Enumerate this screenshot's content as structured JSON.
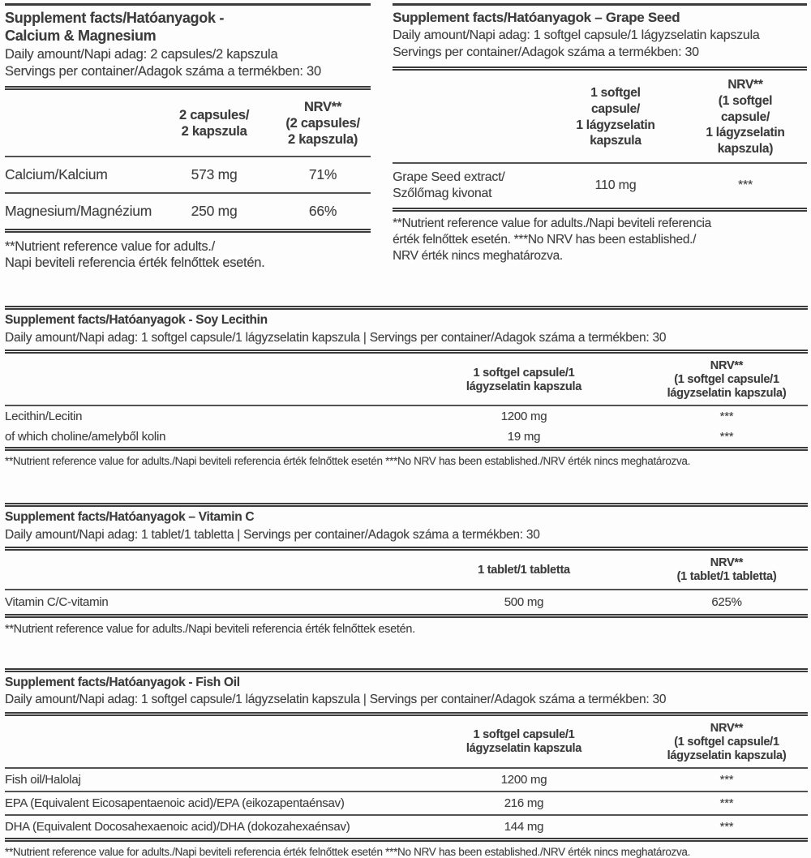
{
  "colors": {
    "text": "#414141",
    "rule": "#3b3b3b",
    "background": "#fdfdfd"
  },
  "tables": [
    {
      "id": "calcium-magnesium",
      "title_lines": [
        "Supplement facts/Hatóanyagok -",
        "Calcium & Magnesium"
      ],
      "meta_lines": [
        "Daily amount/Napi adag: 2 capsules/2 kapszula",
        "Servings per container/Adagok száma a termékben: 30"
      ],
      "amount_header_lines": [
        "2 capsules/",
        "2 kapszula"
      ],
      "nrv_header_lines": [
        "NRV**",
        "(2 capsules/",
        "2 kapszula)"
      ],
      "rows": [
        {
          "label_lines": [
            "Calcium/Kalcium"
          ],
          "amount": "573 mg",
          "nrv": "71%"
        },
        {
          "label_lines": [
            "Magnesium/Magnézium"
          ],
          "amount": "250 mg",
          "nrv": "66%"
        }
      ],
      "footnote_lines": [
        "**Nutrient reference value for adults./",
        "Napi beviteli referencia érték felnőttek esetén."
      ]
    },
    {
      "id": "grape-seed",
      "title_lines": [
        "Supplement facts/Hatóanyagok – Grape Seed"
      ],
      "meta_lines": [
        "Daily amount/Napi adag: 1 softgel capsule/1 lágyzselatin kapszula",
        "Servings per container/Adagok száma a termékben: 30"
      ],
      "amount_header_lines": [
        "1 softgel",
        "capsule/",
        "1 lágyzselatin",
        "kapszula"
      ],
      "nrv_header_lines": [
        "NRV**",
        "(1 softgel",
        "capsule/",
        "1 lágyzselatin",
        "kapszula)"
      ],
      "rows": [
        {
          "label_lines": [
            "Grape Seed extract/",
            "Szőlőmag kivonat"
          ],
          "amount": "110 mg",
          "nrv": "***"
        }
      ],
      "footnote_lines": [
        "**Nutrient reference value for adults./Napi beviteli referencia",
        "érték felnőttek esetén. ***No NRV has been established./",
        "NRV érték nincs meghatározva."
      ]
    },
    {
      "id": "soy-lecithin",
      "title_lines": [
        "Supplement facts/Hatóanyagok - Soy Lecithin"
      ],
      "meta_lines": [
        "Daily amount/Napi adag: 1 softgel capsule/1 lágyzselatin kapszula | Servings per container/Adagok száma a termékben: 30"
      ],
      "amount_header_lines": [
        "1 softgel capsule/1",
        "lágyzselatin kapszula"
      ],
      "nrv_header_lines": [
        "NRV**",
        "(1 softgel capsule/1",
        "lágyzselatin kapszula)"
      ],
      "rows": [
        {
          "label_lines": [
            "Lecithin/Lecitin"
          ],
          "amount": "1200 mg",
          "nrv": "***"
        },
        {
          "label_lines": [
            "of which choline/amelyből kolin"
          ],
          "amount": "19 mg",
          "nrv": "***"
        }
      ],
      "footnote_lines": [
        "**Nutrient reference value for adults./Napi beviteli referencia érték felnőttek esetén ***No NRV has been established./NRV érték nincs meghatározva."
      ]
    },
    {
      "id": "vitamin-c",
      "title_lines": [
        "Supplement facts/Hatóanyagok – Vitamin C"
      ],
      "meta_lines": [
        "Daily amount/Napi adag: 1 tablet/1 tabletta | Servings per container/Adagok száma a termékben: 30"
      ],
      "amount_header_lines": [
        "1 tablet/1 tabletta"
      ],
      "nrv_header_lines": [
        "NRV**",
        "(1 tablet/1 tabletta)"
      ],
      "rows": [
        {
          "label_lines": [
            "Vitamin C/C-vitamin"
          ],
          "amount": "500 mg",
          "nrv": "625%"
        }
      ],
      "footnote_lines": [
        "**Nutrient reference value for adults./Napi beviteli referencia érték felnőttek esetén."
      ]
    },
    {
      "id": "fish-oil",
      "title_lines": [
        "Supplement facts/Hatóanyagok - Fish Oil"
      ],
      "meta_lines": [
        "Daily amount/Napi adag: 1 softgel capsule/1 lágyzselatin kapszula | Servings per container/Adagok száma a termékben: 30"
      ],
      "amount_header_lines": [
        "1 softgel capsule/1",
        "lágyzselatin kapszula"
      ],
      "nrv_header_lines": [
        "NRV**",
        "(1 softgel capsule/1",
        "lágyzselatin kapszula)"
      ],
      "rows": [
        {
          "label_lines": [
            "Fish oil/Halolaj"
          ],
          "amount": "1200 mg",
          "nrv": "***"
        },
        {
          "label_lines": [
            "EPA (Equivalent Eicosapentaenoic acid)/EPA (eikozapentaénsav)"
          ],
          "amount": "216 mg",
          "nrv": "***"
        },
        {
          "label_lines": [
            "DHA (Equivalent Docosahexaenoic acid)/DHA (dokozahexaénsav)"
          ],
          "amount": "144 mg",
          "nrv": "***"
        }
      ],
      "footnote_lines": [
        "**Nutrient reference value for adults./Napi beviteli referencia érték felnőttek esetén ***No NRV has been established./NRV érték nincs meghatározva."
      ]
    }
  ]
}
